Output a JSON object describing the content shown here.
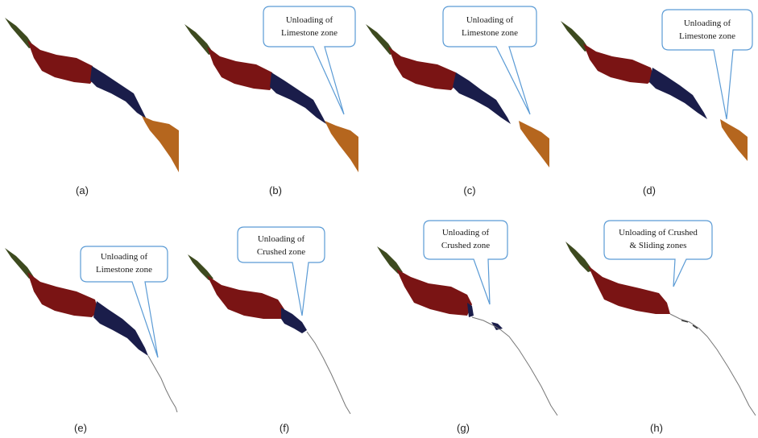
{
  "colors": {
    "top_zone": "#3d4a1f",
    "crushed_zone": "#7a1414",
    "sliding_zone": "#1a1d4a",
    "limestone_zone": "#b5661e",
    "bubble_border": "#5b9bd5"
  },
  "panels": [
    {
      "id": "a",
      "caption": "(a)",
      "callout": null
    },
    {
      "id": "b",
      "caption": "(b)",
      "callout": {
        "line1": "Unloading of",
        "line2": "Limestone zone"
      }
    },
    {
      "id": "c",
      "caption": "(c)",
      "callout": {
        "line1": "Unloading of",
        "line2": "Limestone zone"
      }
    },
    {
      "id": "d",
      "caption": "(d)",
      "callout": {
        "line1": "Unloading of",
        "line2": "Limestone zone"
      }
    },
    {
      "id": "e",
      "caption": "(e)",
      "callout": {
        "line1": "Unloading of",
        "line2": "Limestone zone"
      }
    },
    {
      "id": "f",
      "caption": "(f)",
      "callout": {
        "line1": "Unloading of",
        "line2": "Crushed zone"
      }
    },
    {
      "id": "g",
      "caption": "(g)",
      "callout": {
        "line1": "Unloading of",
        "line2": "Crushed zone"
      }
    },
    {
      "id": "h",
      "caption": "(h)",
      "callout": {
        "line1": "Unloading of Crushed",
        "line2": "& Sliding zones"
      }
    }
  ]
}
